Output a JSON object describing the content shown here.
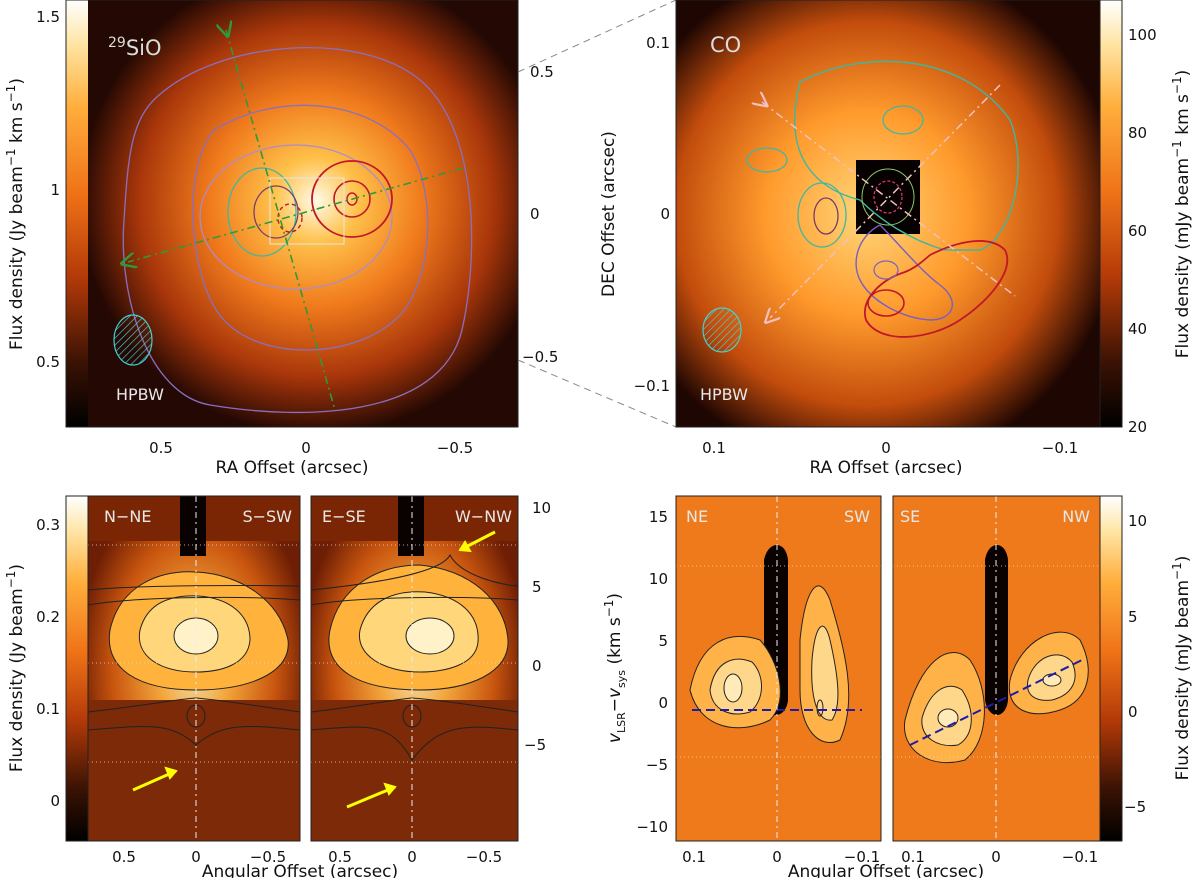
{
  "chart_data": [
    {
      "type": "heatmap",
      "name": "29SiO",
      "title_sup": "29",
      "title_main": "SiO",
      "xlabel": "RA Offset (arcsec)",
      "ylabel": "Flux density (Jy beam",
      "ylabel_sup": "−1",
      "ylabel_tail": " km s",
      "ylabel_sup2": "−1",
      "ylabel_close": ")",
      "xlim": [
        0.85,
        -0.75
      ],
      "xticks": [
        "0.5",
        "0",
        "−0.5"
      ],
      "colorbar_ticks": [
        "0.5",
        "1",
        "1.5"
      ],
      "colorbar_range": [
        0.3,
        1.58
      ],
      "right_ticks": [
        "0.5",
        "0",
        "−0.5"
      ],
      "beam_label": "HPBW"
    },
    {
      "type": "heatmap",
      "name": "CO",
      "title": "CO",
      "xlabel": "RA Offset (arcsec)",
      "ylabel": "DEC Offset (arcsec)",
      "cbar_label": "Flux density (mJy beam",
      "cbar_label_sup": "−1",
      "cbar_label_tail": " km s",
      "cbar_label_sup2": "−1",
      "cbar_label_close": ")",
      "xticks": [
        "0.1",
        "0",
        "−0.1"
      ],
      "yticks": [
        "0.1",
        "0",
        "−0.1"
      ],
      "colorbar_ticks": [
        "20",
        "40",
        "60",
        "80",
        "100"
      ],
      "colorbar_range": [
        20,
        107
      ],
      "beam_label": "HPBW"
    },
    {
      "type": "heatmap",
      "name": "PV 29SiO",
      "panels": [
        {
          "left_label": "N−NE",
          "right_label": "S−SW"
        },
        {
          "left_label": "E−SE",
          "right_label": "W−NW"
        }
      ],
      "xlabel": "Angular Offset (arcsec)",
      "ylabel": "Flux density (Jy beam",
      "ylabel_sup": "−1",
      "ylabel_close": ")",
      "xticks": [
        "0.5",
        "0",
        "−0.5"
      ],
      "colorbar_ticks": [
        "0",
        "0.1",
        "0.2",
        "0.3"
      ],
      "colorbar_range": [
        -0.04,
        0.335
      ],
      "right_ticks": [
        "10",
        "5",
        "0",
        "−5"
      ],
      "velocity_range": [
        -11,
        11
      ]
    },
    {
      "type": "heatmap",
      "name": "PV CO",
      "panels": [
        {
          "left_label": "NE",
          "right_label": "SW"
        },
        {
          "left_label": "SE",
          "right_label": "NW"
        }
      ],
      "xlabel": "Angular Offset (arcsec)",
      "ylabel_v": "v",
      "ylabel_sub1": "LSR",
      "ylabel_mid": "−v",
      "ylabel_sub2": "sys",
      "ylabel_unit": " (km s",
      "ylabel_sup": "−1",
      "ylabel_close": ")",
      "yticks": [
        "15",
        "10",
        "5",
        "0",
        "−5",
        "−10"
      ],
      "velocity_range": [
        -11.5,
        16.5
      ],
      "xticks": [
        "0.1",
        "0",
        "−0.1"
      ],
      "cbar_label": "Flux density (mJy beam",
      "cbar_label_sup": "−1",
      "cbar_label_close": ")",
      "colorbar_ticks": [
        "10",
        "5",
        "0",
        "−5"
      ],
      "colorbar_range": [
        -7,
        11.5
      ]
    }
  ]
}
